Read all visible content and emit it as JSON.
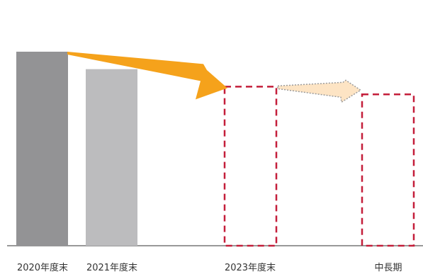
{
  "chart_data": {
    "type": "bar",
    "categories": [
      "2020年度末",
      "2021年度末",
      "2023年度末",
      "中長期"
    ],
    "values": [
      1.0,
      0.91,
      0.82,
      0.78
    ],
    "bar_styles": [
      "actual",
      "actual",
      "target",
      "target"
    ],
    "trend_arrows": [
      {
        "from": 0,
        "to": 2,
        "style": "solid"
      },
      {
        "from": 2,
        "to": 3,
        "style": "dotted"
      }
    ],
    "ylim": [
      0,
      1.0
    ],
    "xlabel": "",
    "ylabel": "",
    "grid": false,
    "legend": false,
    "colors": {
      "bar_2020": "#939395",
      "bar_2021": "#bcbcbe",
      "target_outline": "#c41e3a",
      "arrow_main": "#f5a21b",
      "arrow_light": "#fde4c4",
      "arrow_light_outline": "#9b9b9b",
      "axis": "#333333"
    }
  }
}
